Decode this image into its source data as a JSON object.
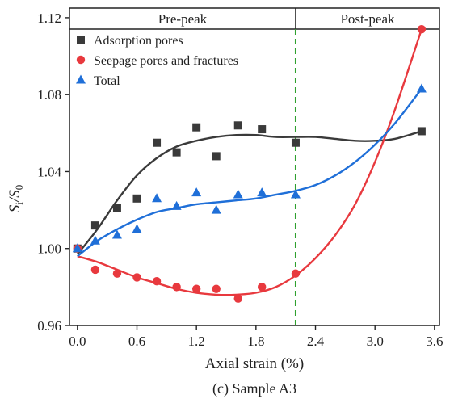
{
  "chart_data": {
    "type": "scatter",
    "caption": "(c) Sample A3",
    "xlabel": "Axial strain (%)",
    "ylabel_main": "S",
    "ylabel_sub1": "i",
    "ylabel_slash": "/S",
    "ylabel_sub2": "0",
    "xlim": [
      -0.08,
      3.65
    ],
    "ylim": [
      0.96,
      1.125
    ],
    "x_ticks": [
      0.0,
      0.6,
      1.2,
      1.8,
      2.4,
      3.0,
      3.6
    ],
    "x_tick_labels": [
      "0.0",
      "0.6",
      "1.2",
      "1.8",
      "2.4",
      "3.0",
      "3.6"
    ],
    "y_ticks": [
      0.96,
      1.0,
      1.04,
      1.08,
      1.12
    ],
    "y_tick_labels": [
      "0.96",
      "1.00",
      "1.04",
      "1.08",
      "1.12"
    ],
    "boundary_strain": 2.2,
    "phases": [
      "Pre-peak",
      "Post-peak"
    ],
    "legend_position": "top-left",
    "series": [
      {
        "name": "Adsorption pores",
        "marker": "square",
        "color": "#3a3a3a",
        "points": [
          [
            0.0,
            1.0
          ],
          [
            0.18,
            1.012
          ],
          [
            0.4,
            1.021
          ],
          [
            0.6,
            1.026
          ],
          [
            0.8,
            1.055
          ],
          [
            1.0,
            1.05
          ],
          [
            1.2,
            1.063
          ],
          [
            1.4,
            1.048
          ],
          [
            1.62,
            1.064
          ],
          [
            1.86,
            1.062
          ],
          [
            2.2,
            1.055
          ],
          [
            3.47,
            1.061
          ]
        ],
        "fit": [
          [
            0.0,
            0.997
          ],
          [
            0.2,
            1.01
          ],
          [
            0.4,
            1.025
          ],
          [
            0.6,
            1.038
          ],
          [
            0.8,
            1.047
          ],
          [
            1.0,
            1.053
          ],
          [
            1.2,
            1.056
          ],
          [
            1.4,
            1.058
          ],
          [
            1.6,
            1.059
          ],
          [
            1.8,
            1.059
          ],
          [
            2.0,
            1.058
          ],
          [
            2.2,
            1.058
          ],
          [
            2.4,
            1.058
          ],
          [
            2.6,
            1.057
          ],
          [
            2.8,
            1.056
          ],
          [
            3.0,
            1.056
          ],
          [
            3.2,
            1.057
          ],
          [
            3.47,
            1.061
          ]
        ]
      },
      {
        "name": "Seepage pores and fractures",
        "marker": "circle",
        "color": "#e8393e",
        "points": [
          [
            0.0,
            1.0
          ],
          [
            0.18,
            0.989
          ],
          [
            0.4,
            0.987
          ],
          [
            0.6,
            0.985
          ],
          [
            0.8,
            0.983
          ],
          [
            1.0,
            0.98
          ],
          [
            1.2,
            0.979
          ],
          [
            1.4,
            0.979
          ],
          [
            1.62,
            0.974
          ],
          [
            1.86,
            0.98
          ],
          [
            2.2,
            0.987
          ],
          [
            3.47,
            1.114
          ]
        ],
        "fit": [
          [
            0.0,
            0.996
          ],
          [
            0.2,
            0.993
          ],
          [
            0.4,
            0.989
          ],
          [
            0.6,
            0.985
          ],
          [
            0.8,
            0.982
          ],
          [
            1.0,
            0.979
          ],
          [
            1.2,
            0.977
          ],
          [
            1.4,
            0.976
          ],
          [
            1.6,
            0.976
          ],
          [
            1.8,
            0.977
          ],
          [
            2.0,
            0.98
          ],
          [
            2.2,
            0.986
          ],
          [
            2.4,
            0.995
          ],
          [
            2.6,
            1.007
          ],
          [
            2.8,
            1.023
          ],
          [
            3.0,
            1.045
          ],
          [
            3.2,
            1.072
          ],
          [
            3.47,
            1.114
          ]
        ]
      },
      {
        "name": "Total",
        "marker": "triangle",
        "color": "#1f6fd8",
        "points": [
          [
            0.0,
            1.0
          ],
          [
            0.18,
            1.004
          ],
          [
            0.4,
            1.007
          ],
          [
            0.6,
            1.01
          ],
          [
            0.8,
            1.026
          ],
          [
            1.0,
            1.022
          ],
          [
            1.2,
            1.029
          ],
          [
            1.4,
            1.02
          ],
          [
            1.62,
            1.028
          ],
          [
            1.86,
            1.029
          ],
          [
            2.2,
            1.028
          ],
          [
            3.47,
            1.083
          ]
        ],
        "fit": [
          [
            0.0,
            0.996
          ],
          [
            0.2,
            1.004
          ],
          [
            0.4,
            1.01
          ],
          [
            0.6,
            1.015
          ],
          [
            0.8,
            1.019
          ],
          [
            1.0,
            1.021
          ],
          [
            1.2,
            1.023
          ],
          [
            1.4,
            1.024
          ],
          [
            1.6,
            1.025
          ],
          [
            1.8,
            1.026
          ],
          [
            2.0,
            1.028
          ],
          [
            2.2,
            1.03
          ],
          [
            2.4,
            1.033
          ],
          [
            2.6,
            1.038
          ],
          [
            2.8,
            1.045
          ],
          [
            3.0,
            1.054
          ],
          [
            3.2,
            1.065
          ],
          [
            3.47,
            1.083
          ]
        ]
      }
    ]
  }
}
